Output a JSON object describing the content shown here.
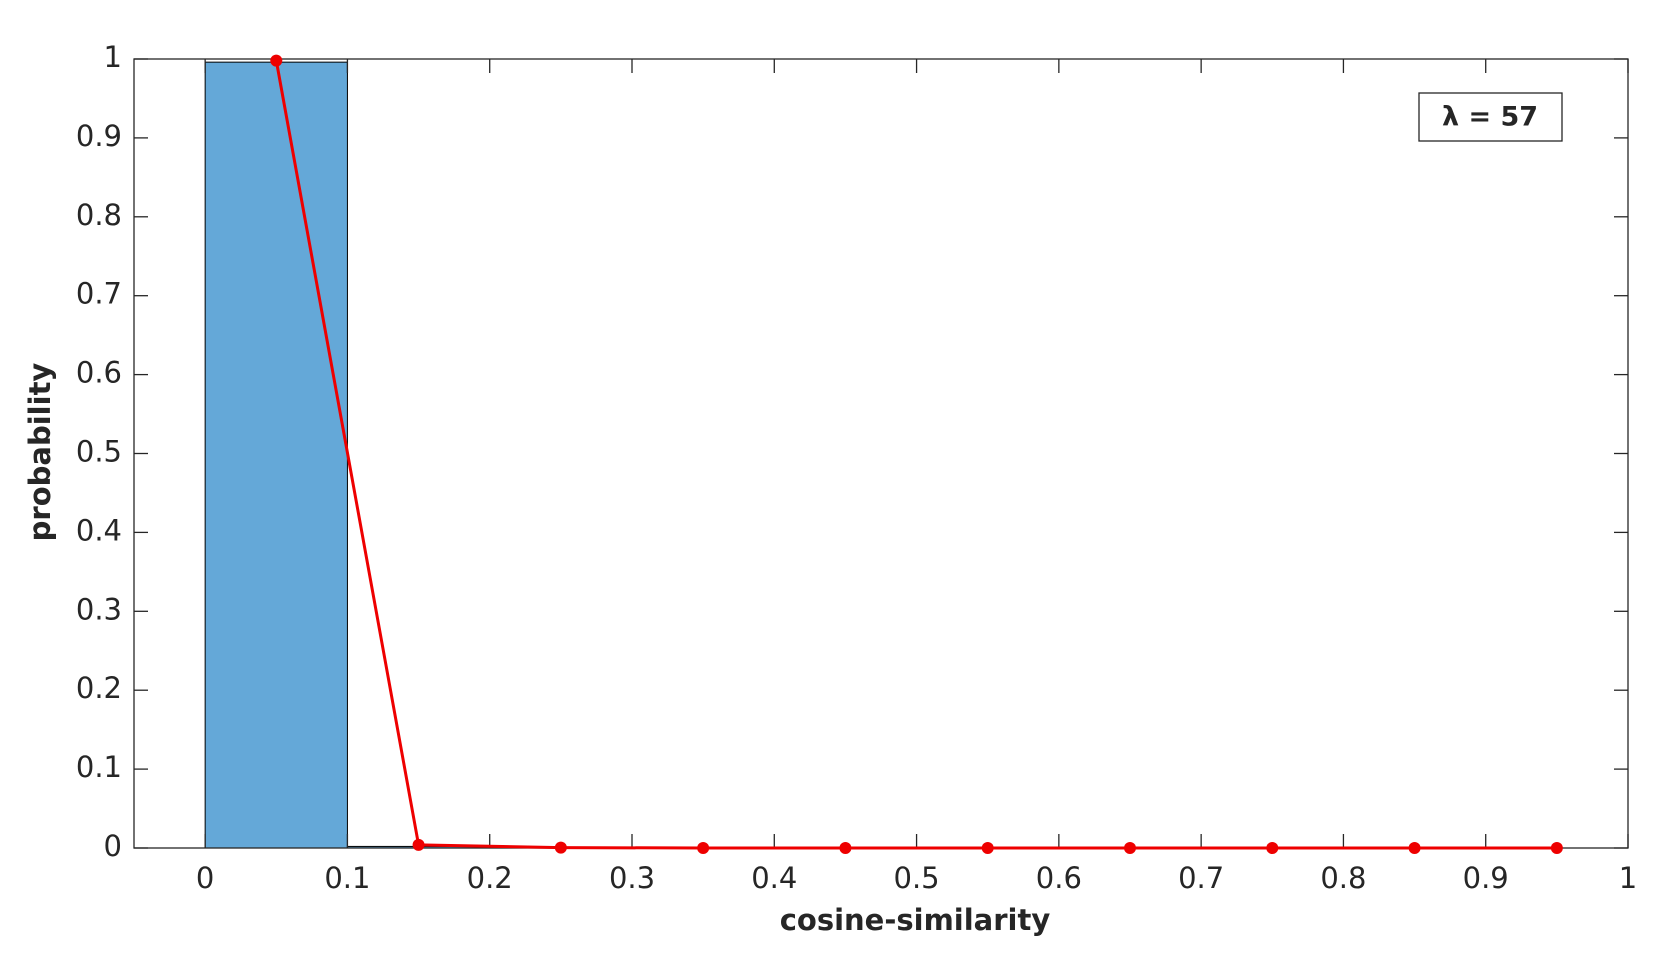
{
  "chart_data": {
    "type": "histogram",
    "xlabel": "cosine-similarity",
    "ylabel": "probability",
    "annotation": "λ = 57",
    "bins": [
      0,
      0.1,
      0.2,
      0.3,
      0.4,
      0.5,
      0.6,
      0.7,
      0.8,
      0.9,
      1
    ],
    "counts": [
      0.996,
      0.002,
      0,
      0,
      0,
      0,
      0,
      0,
      0,
      0
    ],
    "color": "#64a8d8",
    "line": {
      "x": [
        0.05,
        0.15,
        0.25,
        0.35,
        0.45,
        0.55,
        0.65,
        0.75,
        0.85,
        0.95
      ],
      "values": [
        0.998,
        0.004,
        0.0005,
        0,
        0,
        0,
        0,
        0,
        0,
        0
      ],
      "color": "#ee0000"
    },
    "xlim": [
      -0.05,
      1
    ],
    "ylim": [
      0,
      1
    ],
    "xticks": [
      0,
      0.1,
      0.2,
      0.3,
      0.4,
      0.5,
      0.6,
      0.7,
      0.8,
      0.9,
      1
    ],
    "yticks": [
      0,
      0.1,
      0.2,
      0.3,
      0.4,
      0.5,
      0.6,
      0.7,
      0.8,
      0.9,
      1
    ]
  }
}
